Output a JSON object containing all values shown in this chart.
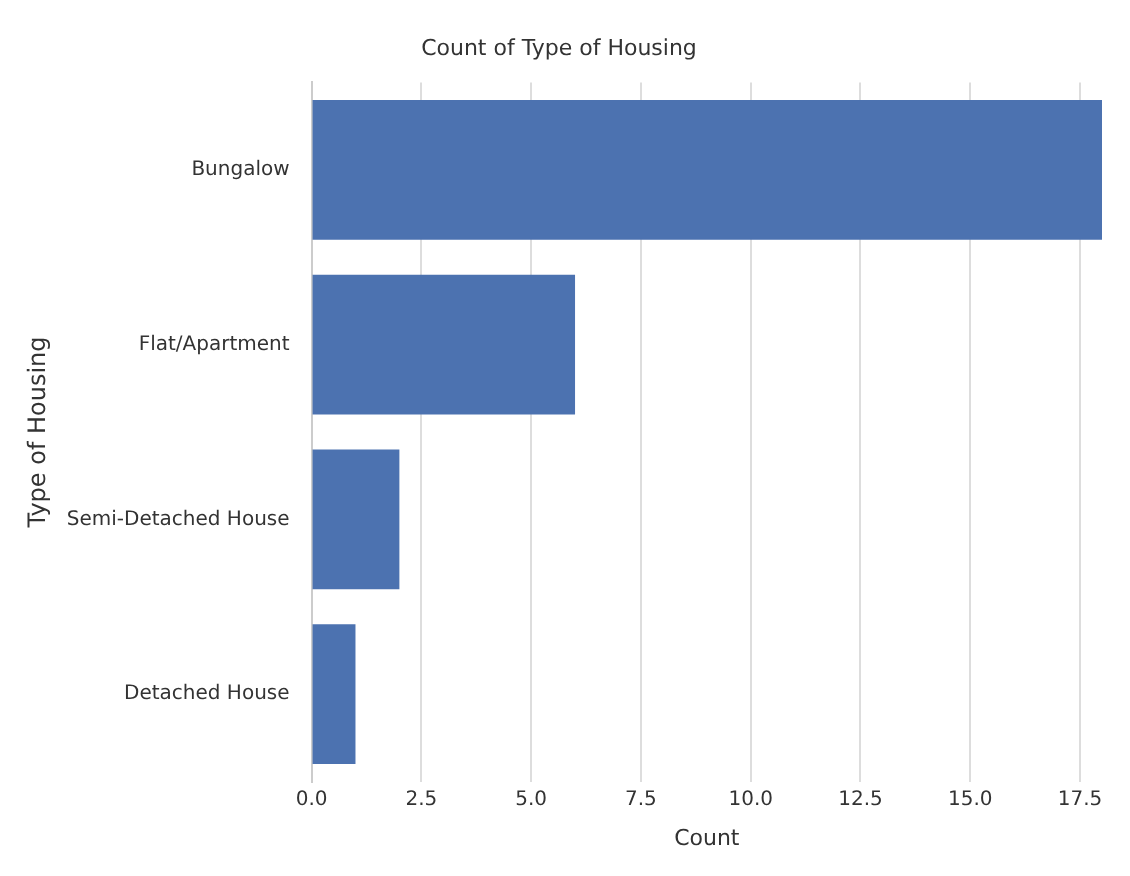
{
  "chart_data": {
    "type": "bar",
    "orientation": "horizontal",
    "title": "Count of Type of Housing",
    "xlabel": "Count",
    "ylabel": "Type of Housing",
    "categories": [
      "Bungalow",
      "Flat/Apartment",
      "Semi-Detached House",
      "Detached House"
    ],
    "values": [
      18,
      6,
      2,
      1
    ],
    "color": "#4c72b0",
    "xlim": [
      0,
      18
    ],
    "xticks": [
      {
        "value": 0,
        "label": "0.0"
      },
      {
        "value": 2.5,
        "label": "2.5"
      },
      {
        "value": 5,
        "label": "5.0"
      },
      {
        "value": 7.5,
        "label": "7.5"
      },
      {
        "value": 10,
        "label": "10.0"
      },
      {
        "value": 12.5,
        "label": "12.5"
      },
      {
        "value": 15,
        "label": "15.0"
      },
      {
        "value": 17.5,
        "label": "17.5"
      }
    ],
    "grid": "x",
    "legend": false
  }
}
